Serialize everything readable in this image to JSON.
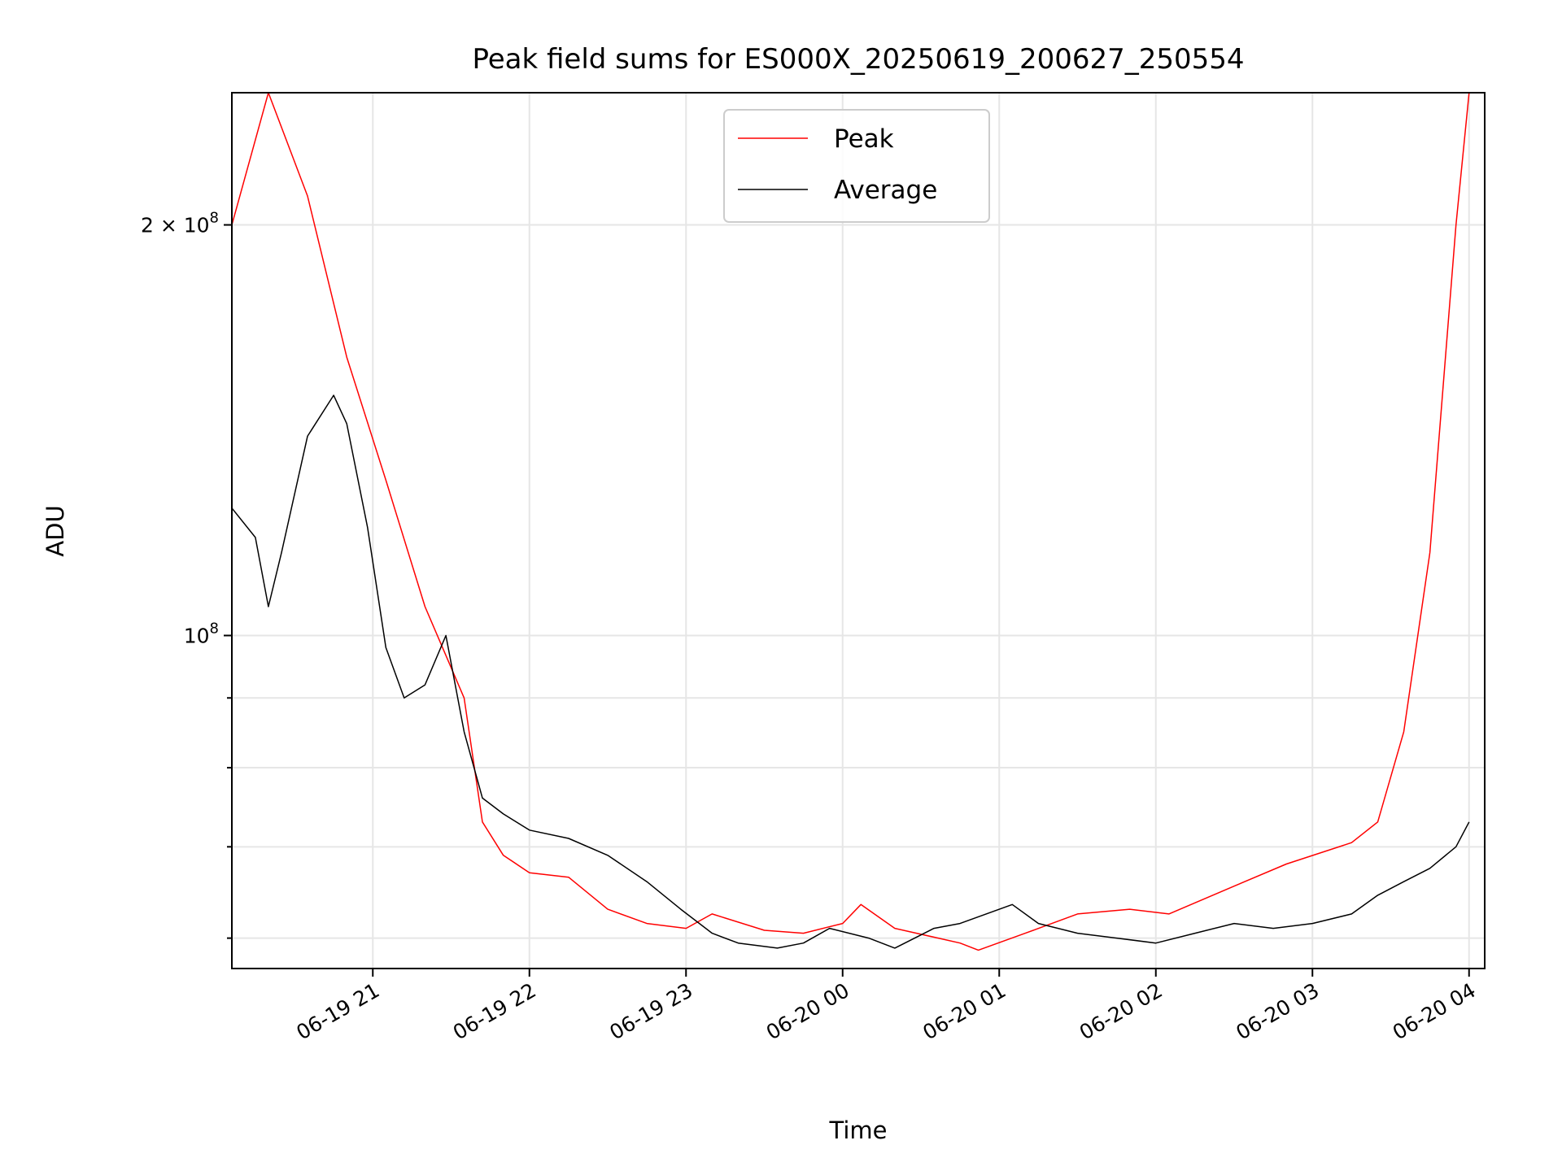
{
  "chart_data": {
    "type": "line",
    "title": "Peak field sums for ES000X_20250619_200627_250554",
    "xlabel": "Time",
    "ylabel": "ADU",
    "yscale": "log",
    "xlim": [
      "2025-06-19 20:06",
      "2025-06-20 04:06"
    ],
    "ylim": [
      57000000,
      250000000
    ],
    "x_ticks": [
      "06-19 21",
      "06-19 22",
      "06-19 23",
      "06-20 00",
      "06-20 01",
      "06-20 02",
      "06-20 03",
      "06-20 04"
    ],
    "y_major_ticks": [
      {
        "value": 100000000,
        "label_base": "10",
        "label_exp": "8"
      },
      {
        "value": 200000000,
        "label_base": "2 × 10",
        "label_exp": "8"
      }
    ],
    "y_minor_ticks": [
      60000000,
      70000000,
      80000000,
      90000000
    ],
    "grid": true,
    "legend_position": "upper center",
    "series": [
      {
        "name": "Peak",
        "color": "#ff0000",
        "points": [
          [
            "2025-06-19 20:06",
            200000000
          ],
          [
            "2025-06-19 20:20",
            250000000
          ],
          [
            "2025-06-19 20:35",
            210000000
          ],
          [
            "2025-06-19 20:50",
            160000000
          ],
          [
            "2025-06-19 21:05",
            130000000
          ],
          [
            "2025-06-19 21:20",
            105000000
          ],
          [
            "2025-06-19 21:35",
            90000000
          ],
          [
            "2025-06-19 21:42",
            73000000
          ],
          [
            "2025-06-19 21:50",
            69000000
          ],
          [
            "2025-06-19 22:00",
            67000000
          ],
          [
            "2025-06-19 22:15",
            66500000
          ],
          [
            "2025-06-19 22:30",
            63000000
          ],
          [
            "2025-06-19 22:45",
            61500000
          ],
          [
            "2025-06-19 23:00",
            61000000
          ],
          [
            "2025-06-19 23:10",
            62500000
          ],
          [
            "2025-06-19 23:30",
            60800000
          ],
          [
            "2025-06-19 23:45",
            60500000
          ],
          [
            "2025-06-20 00:00",
            61500000
          ],
          [
            "2025-06-20 00:07",
            63500000
          ],
          [
            "2025-06-20 00:20",
            61000000
          ],
          [
            "2025-06-20 00:45",
            59500000
          ],
          [
            "2025-06-20 00:52",
            58800000
          ],
          [
            "2025-06-20 01:10",
            60500000
          ],
          [
            "2025-06-20 01:30",
            62500000
          ],
          [
            "2025-06-20 01:50",
            63000000
          ],
          [
            "2025-06-20 02:05",
            62500000
          ],
          [
            "2025-06-20 02:30",
            65500000
          ],
          [
            "2025-06-20 02:50",
            68000000
          ],
          [
            "2025-06-20 03:15",
            70500000
          ],
          [
            "2025-06-20 03:25",
            73000000
          ],
          [
            "2025-06-20 03:35",
            85000000
          ],
          [
            "2025-06-20 03:45",
            115000000
          ],
          [
            "2025-06-20 03:55",
            200000000
          ],
          [
            "2025-06-20 04:00",
            250000000
          ]
        ]
      },
      {
        "name": "Average",
        "color": "#000000",
        "points": [
          [
            "2025-06-19 20:06",
            124000000
          ],
          [
            "2025-06-19 20:15",
            118000000
          ],
          [
            "2025-06-19 20:20",
            105000000
          ],
          [
            "2025-06-19 20:25",
            115000000
          ],
          [
            "2025-06-19 20:35",
            140000000
          ],
          [
            "2025-06-19 20:45",
            150000000
          ],
          [
            "2025-06-19 20:50",
            143000000
          ],
          [
            "2025-06-19 20:58",
            120000000
          ],
          [
            "2025-06-19 21:05",
            98000000
          ],
          [
            "2025-06-19 21:12",
            90000000
          ],
          [
            "2025-06-19 21:20",
            92000000
          ],
          [
            "2025-06-19 21:28",
            100000000
          ],
          [
            "2025-06-19 21:35",
            85000000
          ],
          [
            "2025-06-19 21:42",
            76000000
          ],
          [
            "2025-06-19 21:50",
            74000000
          ],
          [
            "2025-06-19 22:00",
            72000000
          ],
          [
            "2025-06-19 22:15",
            71000000
          ],
          [
            "2025-06-19 22:30",
            69000000
          ],
          [
            "2025-06-19 22:45",
            66000000
          ],
          [
            "2025-06-19 22:58",
            63000000
          ],
          [
            "2025-06-19 23:10",
            60500000
          ],
          [
            "2025-06-19 23:20",
            59500000
          ],
          [
            "2025-06-19 23:35",
            59000000
          ],
          [
            "2025-06-19 23:45",
            59500000
          ],
          [
            "2025-06-19 23:55",
            61000000
          ],
          [
            "2025-06-20 00:10",
            60000000
          ],
          [
            "2025-06-20 00:20",
            59000000
          ],
          [
            "2025-06-20 00:35",
            61000000
          ],
          [
            "2025-06-20 00:45",
            61500000
          ],
          [
            "2025-06-20 00:55",
            62500000
          ],
          [
            "2025-06-20 01:05",
            63500000
          ],
          [
            "2025-06-20 01:15",
            61500000
          ],
          [
            "2025-06-20 01:30",
            60500000
          ],
          [
            "2025-06-20 01:45",
            60000000
          ],
          [
            "2025-06-20 02:00",
            59500000
          ],
          [
            "2025-06-20 02:15",
            60500000
          ],
          [
            "2025-06-20 02:30",
            61500000
          ],
          [
            "2025-06-20 02:45",
            61000000
          ],
          [
            "2025-06-20 03:00",
            61500000
          ],
          [
            "2025-06-20 03:15",
            62500000
          ],
          [
            "2025-06-20 03:25",
            64500000
          ],
          [
            "2025-06-20 03:35",
            66000000
          ],
          [
            "2025-06-20 03:45",
            67500000
          ],
          [
            "2025-06-20 03:55",
            70000000
          ],
          [
            "2025-06-20 04:00",
            73000000
          ]
        ]
      }
    ]
  }
}
